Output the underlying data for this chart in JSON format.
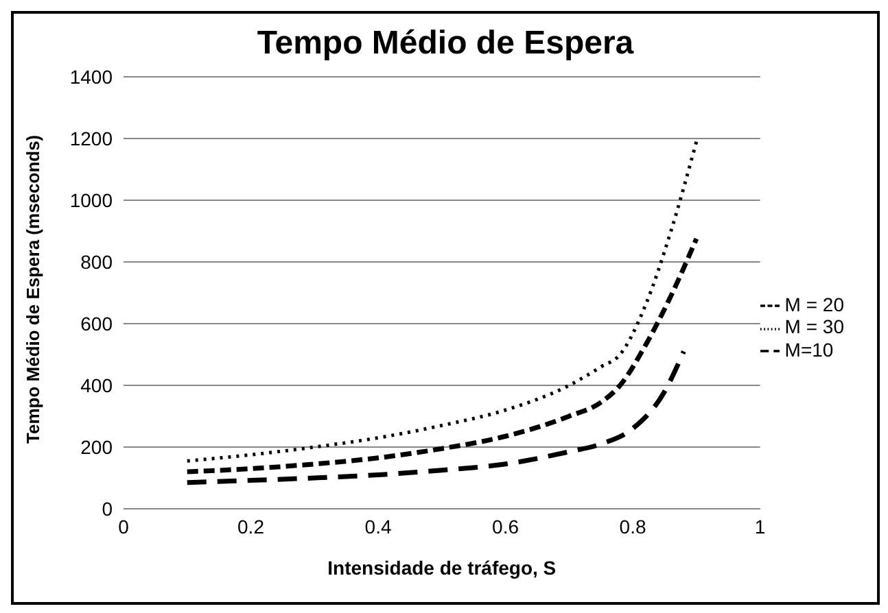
{
  "chart_data": {
    "type": "line",
    "title": "Tempo Médio de Espera",
    "xlabel": "Intensidade de tráfego, S",
    "ylabel": "Tempo Médio de Espera (mseconds)",
    "xlim": [
      0,
      1
    ],
    "xticks": [
      0,
      0.2,
      0.4,
      0.6,
      0.8,
      1
    ],
    "ylim": [
      0,
      1400
    ],
    "yticks": [
      0,
      200,
      400,
      600,
      800,
      1000,
      1200,
      1400
    ],
    "grid": "y",
    "legend": "right",
    "marker": "none",
    "series": [
      {
        "name": "M=10",
        "color": "#000000",
        "line_style": "dashed",
        "x": [
          0.1,
          0.2,
          0.3,
          0.4,
          0.5,
          0.6,
          0.7,
          0.75,
          0.8,
          0.85,
          0.88
        ],
        "values": [
          85,
          92,
          100,
          110,
          125,
          145,
          185,
          210,
          260,
          380,
          510
        ]
      },
      {
        "name": "M = 20",
        "color": "#000000",
        "line_style": "dashed",
        "x": [
          0.1,
          0.2,
          0.3,
          0.4,
          0.5,
          0.6,
          0.7,
          0.75,
          0.78,
          0.82,
          0.86,
          0.9
        ],
        "values": [
          120,
          130,
          145,
          165,
          195,
          235,
          300,
          345,
          400,
          530,
          690,
          875
        ]
      },
      {
        "name": "M = 30",
        "color": "#000000",
        "line_style": "dotted",
        "x": [
          0.1,
          0.2,
          0.3,
          0.4,
          0.5,
          0.6,
          0.7,
          0.75,
          0.78,
          0.82,
          0.86,
          0.9
        ],
        "values": [
          155,
          175,
          200,
          230,
          270,
          320,
          400,
          460,
          500,
          660,
          900,
          1190
        ]
      }
    ]
  }
}
